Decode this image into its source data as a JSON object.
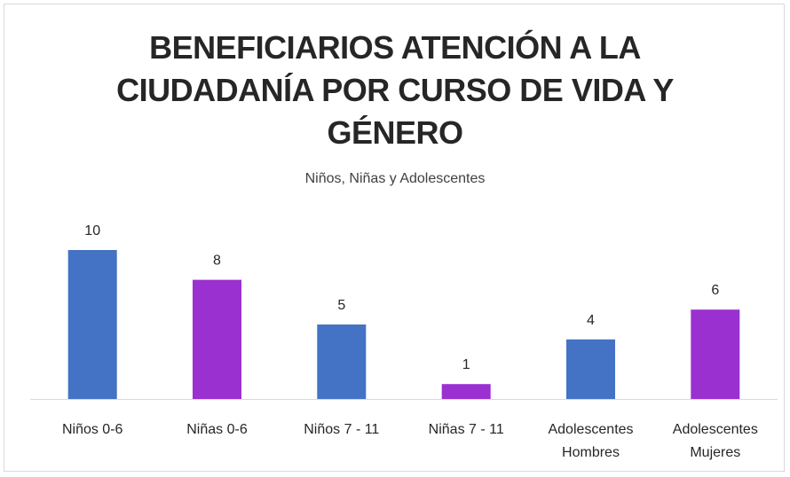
{
  "chart_data": {
    "type": "bar",
    "title_lines": [
      "BENEFICIARIOS ATENCIÓN A LA",
      "CIUDADANÍA POR CURSO DE VIDA Y",
      "GÉNERO"
    ],
    "subtitle": "Niños, Niñas y Adolescentes",
    "categories": [
      [
        "Niños 0-6"
      ],
      [
        "Niñas 0-6"
      ],
      [
        "Niños 7 - 11"
      ],
      [
        "Niñas 7 - 11"
      ],
      [
        "Adolescentes",
        "Hombres"
      ],
      [
        "Adolescentes",
        "Mujeres"
      ]
    ],
    "values": [
      10,
      8,
      5,
      1,
      4,
      6
    ],
    "colors": [
      "#4472c4",
      "#9b30d0",
      "#4472c4",
      "#9b30d0",
      "#4472c4",
      "#9b30d0"
    ],
    "data_labels": true,
    "grid": false,
    "ylim": [
      0,
      10
    ]
  }
}
